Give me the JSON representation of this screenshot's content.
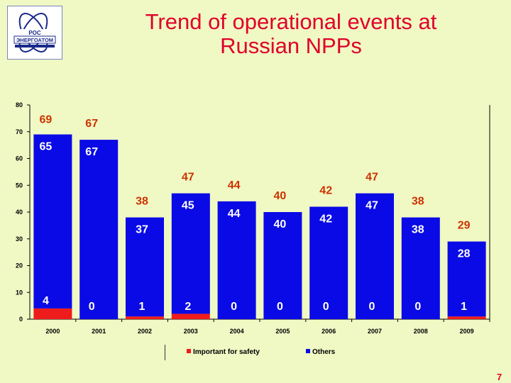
{
  "header": {
    "title_line1": "Trend of operational events at",
    "title_line2": "Russian NPPs",
    "logo_text_top": "РОС",
    "logo_text_main": "ЭНЕРГОАТОМ"
  },
  "page_number": "7",
  "colors": {
    "background": "#f0f8c4",
    "safety": "#ee1c1c",
    "others": "#0a0ae6",
    "label": "#cc3300",
    "label_white": "#ffffff",
    "title": "#e0002a"
  },
  "chart_data": {
    "type": "bar",
    "stacked": true,
    "categories": [
      "2000",
      "2001",
      "2002",
      "2003",
      "2004",
      "2005",
      "2006",
      "2007",
      "2008",
      "2009"
    ],
    "series": [
      {
        "name": "Important for safety",
        "values": [
          4,
          0,
          1,
          2,
          0,
          0,
          0,
          0,
          0,
          1
        ]
      },
      {
        "name": "Others",
        "values": [
          65,
          67,
          37,
          45,
          44,
          40,
          42,
          47,
          38,
          28
        ]
      }
    ],
    "totals": [
      69,
      67,
      38,
      47,
      44,
      40,
      42,
      47,
      38,
      29
    ],
    "ylim": [
      0,
      80
    ],
    "yticks": [
      0,
      10,
      20,
      30,
      40,
      50,
      60,
      70,
      80
    ],
    "legend_position": "bottom",
    "grid": false
  }
}
